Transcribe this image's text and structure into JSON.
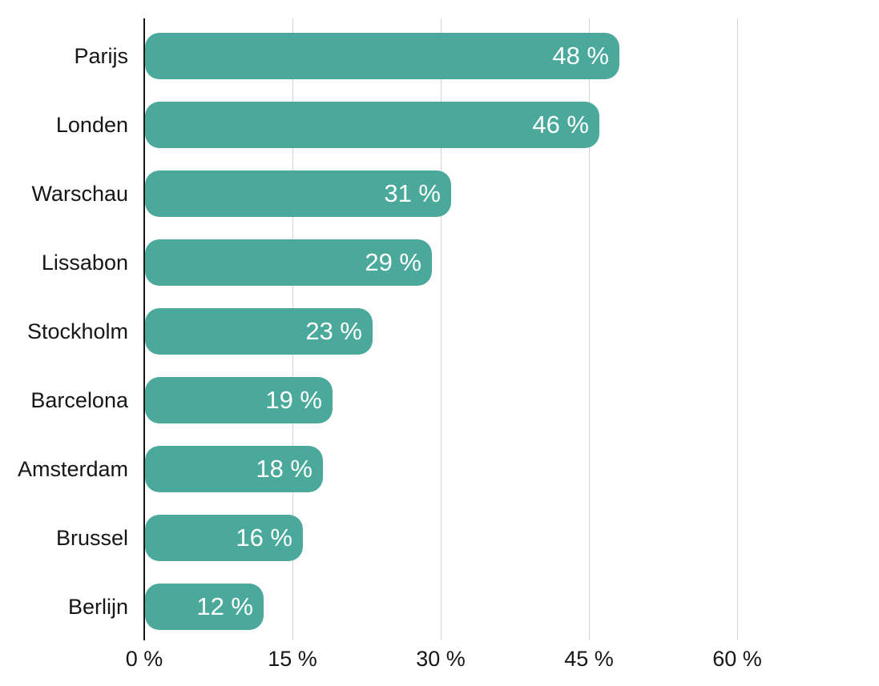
{
  "chart_data": {
    "type": "bar",
    "orientation": "horizontal",
    "title": "",
    "xlabel": "",
    "ylabel": "",
    "grid": true,
    "legend": false,
    "categories": [
      "Parijs",
      "Londen",
      "Warschau",
      "Lissabon",
      "Stockholm",
      "Barcelona",
      "Amsterdam",
      "Brussel",
      "Berlijn"
    ],
    "values": [
      48,
      46,
      31,
      29,
      23,
      19,
      18,
      16,
      12
    ],
    "value_labels": [
      "48 %",
      "46 %",
      "31 %",
      "29 %",
      "23 %",
      "19 %",
      "18 %",
      "16 %",
      "12 %"
    ],
    "x_axis": {
      "min": 0,
      "max": 74,
      "ticks": [
        0,
        15,
        30,
        45,
        60
      ],
      "tick_labels": [
        "0 %",
        "15 %",
        "30 %",
        "45 %",
        "60 %"
      ]
    },
    "colors": {
      "bar": "#4aa99b",
      "value_text": "#ffffff",
      "axis_line": "#161616",
      "gridline": "#d4d4d4",
      "label_text": "#161616"
    }
  }
}
